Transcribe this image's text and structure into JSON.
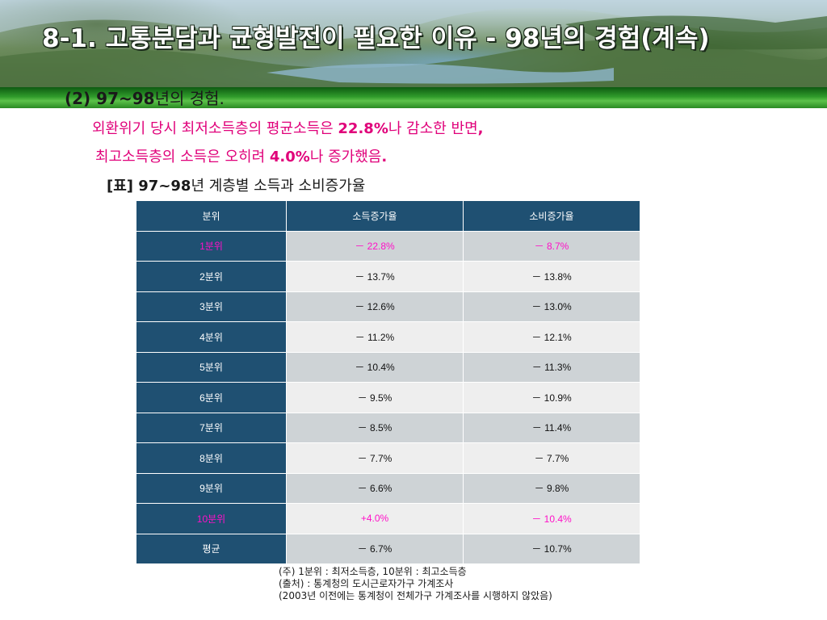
{
  "header": {
    "title": "8-1. 고통분담과 균형발전이 필요한 이유 - 98년의 경험(계속)"
  },
  "section": {
    "subheading_bold": "(2) 97~98",
    "subheading_rest": "년의 경험."
  },
  "body": {
    "line1": {
      "pre": "외환위기 당시 최저소득층의 평균소득은 ",
      "bold": "22.8%",
      "post": "나 감소한 반면",
      "end": ","
    },
    "line2": {
      "pre": "최고소득층의 소득은 오히려 ",
      "bold": "4.0%",
      "post": "나 증가했음",
      "end": "."
    }
  },
  "table_caption": {
    "bracket": "[표] ",
    "bold": "97~98",
    "rest": "년 계층별 소득과 소비증가율"
  },
  "table": {
    "headers": [
      "분위",
      "소득증가율",
      "소비증가율"
    ],
    "rows": [
      [
        "1분위",
        "－ 22.8%",
        "－ 8.7%"
      ],
      [
        "2분위",
        "－ 13.7%",
        "－ 13.8%"
      ],
      [
        "3분위",
        "－ 12.6%",
        "－ 13.0%"
      ],
      [
        "4분위",
        "－ 11.2%",
        "－ 12.1%"
      ],
      [
        "5분위",
        "－ 10.4%",
        "－ 11.3%"
      ],
      [
        "6분위",
        "－ 9.5%",
        "－ 10.9%"
      ],
      [
        "7분위",
        "－ 8.5%",
        "－ 11.4%"
      ],
      [
        "8분위",
        "－ 7.7%",
        "－ 7.7%"
      ],
      [
        "9분위",
        "－ 6.6%",
        "－ 9.8%"
      ],
      [
        "10분위",
        "+4.0%",
        "－ 10.4%"
      ],
      [
        "평균",
        "－ 6.7%",
        "－ 10.7%"
      ]
    ],
    "highlight_color": "#ff10c8",
    "header_color": "#1f5072"
  },
  "notes": [
    "(주) 1분위 : 최저소득층, 10분위 : 최고소득층",
    "(출처) : 통계청의 도시근로자가구 가계조사",
    "(2003년 이전에는 통계청이 전체가구 가계조사를 시행하지 않았음)"
  ]
}
